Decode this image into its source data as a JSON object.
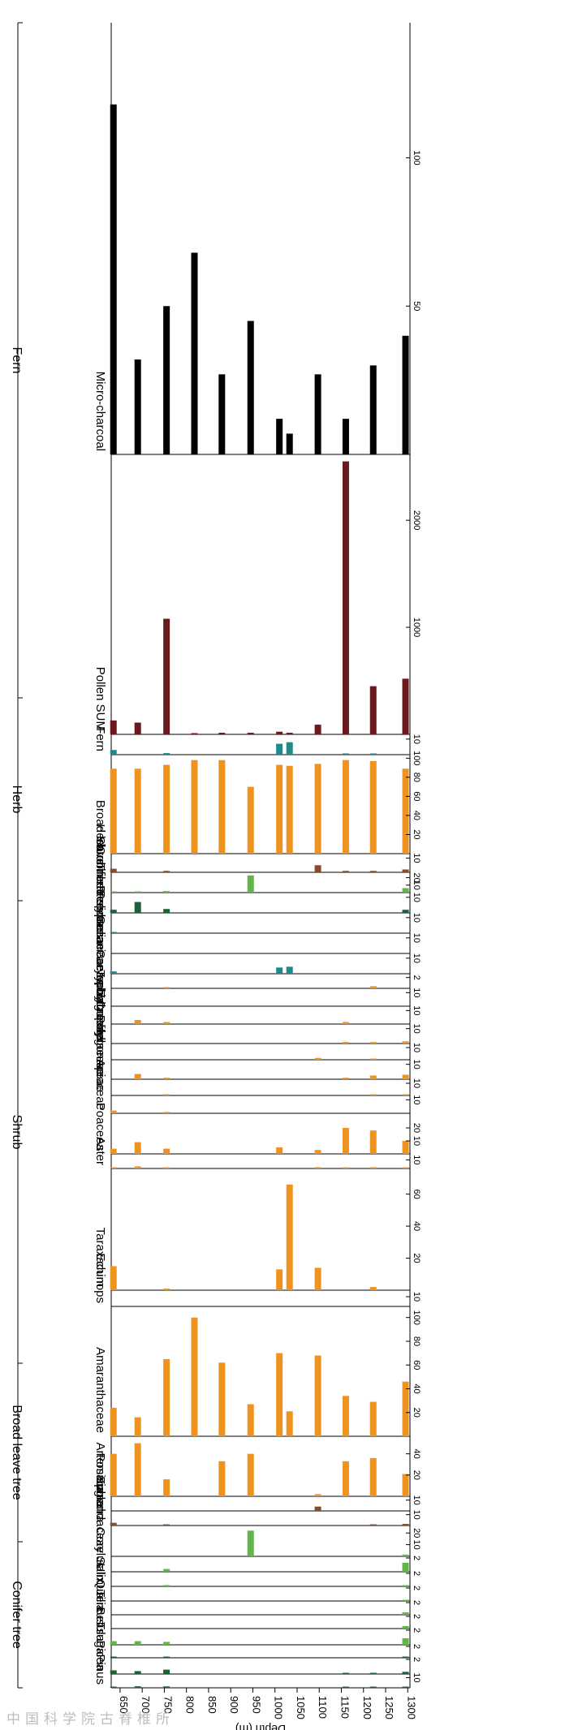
{
  "chart_data": {
    "type": "bar",
    "title": "",
    "x_axis": {
      "label": "Depth (m)",
      "range": [
        630,
        1305
      ],
      "ticks": [
        650,
        700,
        750,
        800,
        850,
        900,
        950,
        1000,
        1050,
        1100,
        1150,
        1200,
        1250,
        1300
      ]
    },
    "depths": [
      635,
      690,
      755,
      818,
      880,
      945,
      1010,
      1033,
      1097,
      1160,
      1222,
      1295
    ],
    "colors": {
      "conifer": "#1f5f3a",
      "broadleaf": "#62b44c",
      "shrub": "#8a4a2c",
      "herb": "#ef9320",
      "fern": "#1f8a8a",
      "pollen_sum": "#6a1a1e",
      "charcoal": "#000000"
    },
    "group_labels": [
      "Conifer tree",
      "Broad leave tree",
      "Shrub",
      "Herb",
      "Fern"
    ],
    "taxa": [
      {
        "name": "Pinus",
        "group": "conifer",
        "max": 12,
        "ticks": [
          10
        ],
        "values": [
          0.9,
          1.5,
          1.4,
          0,
          0,
          0,
          0,
          0,
          0,
          0.3,
          0.3,
          0.5
        ]
      },
      {
        "name": "Picea",
        "group": "conifer",
        "max": 2,
        "ticks": [
          2
        ],
        "values": [
          0.5,
          0.4,
          0.6,
          0,
          0,
          0,
          0,
          0,
          0,
          0.1,
          0.1,
          0.3
        ]
      },
      {
        "name": "Tsuga",
        "group": "conifer",
        "max": 2,
        "ticks": [
          2
        ],
        "values": [
          0.1,
          0,
          0.1,
          0,
          0,
          0,
          0,
          0,
          0,
          0,
          0,
          0.1
        ]
      },
      {
        "name": "Betula",
        "group": "broadleaf",
        "max": 2,
        "ticks": [
          2
        ],
        "values": [
          0.5,
          0.5,
          0.4,
          0,
          0,
          0,
          0,
          0,
          0,
          0,
          0,
          0.9
        ]
      },
      {
        "name": "Quercus",
        "group": "broadleaf",
        "max": 2,
        "ticks": [
          2
        ],
        "values": [
          0,
          0,
          0,
          0,
          0,
          0,
          0,
          0,
          0,
          0,
          0,
          0.4
        ]
      },
      {
        "name": "Tilia",
        "group": "broadleaf",
        "max": 2,
        "ticks": [
          2
        ],
        "values": [
          0,
          0,
          0,
          0,
          0,
          0,
          0,
          0,
          0,
          0,
          0,
          0.4
        ]
      },
      {
        "name": "Ulmus",
        "group": "broadleaf",
        "max": 2,
        "ticks": [
          2
        ],
        "values": [
          0,
          0,
          0,
          0,
          0,
          0,
          0,
          0,
          0,
          0,
          0,
          0.1
        ]
      },
      {
        "name": "Salix",
        "group": "broadleaf",
        "max": 2,
        "ticks": [
          2
        ],
        "values": [
          0,
          0,
          0.2,
          0,
          0,
          0,
          0,
          0,
          0,
          0,
          0,
          0.1
        ]
      },
      {
        "name": "Corylus",
        "group": "broadleaf",
        "max": 2,
        "ticks": [
          2
        ],
        "values": [
          0,
          0,
          0.4,
          0,
          0,
          0,
          0,
          0,
          0,
          0,
          0,
          1.3
        ]
      },
      {
        "name": "Juglandaceae",
        "group": "broadleaf",
        "max": 25,
        "ticks": [
          10,
          20
        ],
        "values": [
          0,
          0,
          0,
          0,
          0,
          22,
          0,
          0,
          0,
          0,
          0,
          1.5
        ]
      },
      {
        "name": "Ephedra",
        "group": "shrub",
        "max": 12,
        "ticks": [
          10
        ],
        "values": [
          2.5,
          0,
          1,
          0,
          0,
          0,
          0,
          0,
          0,
          0,
          1,
          1.5
        ]
      },
      {
        "name": "Rosaceae",
        "group": "shrub",
        "max": 12,
        "ticks": [
          10
        ],
        "values": [
          0,
          0,
          0,
          0,
          0,
          0,
          0,
          0,
          4,
          0,
          0,
          0
        ]
      },
      {
        "name": "Artemisia",
        "group": "herb",
        "max": 55,
        "ticks": [
          20,
          40
        ],
        "values": [
          40,
          50,
          16,
          0,
          33,
          40,
          0,
          0,
          2,
          33,
          36,
          21
        ]
      },
      {
        "name": "Amaranthaceae",
        "group": "herb",
        "max": 108,
        "ticks": [
          20,
          40,
          60,
          80,
          100
        ],
        "values": [
          24,
          16,
          65,
          100,
          62,
          27,
          70,
          21,
          68,
          34,
          29,
          46
        ]
      },
      {
        "name": "Echinops",
        "group": "herb",
        "max": 15,
        "ticks": [
          10
        ],
        "values": [
          0,
          0,
          0,
          0,
          0,
          0,
          0,
          0,
          0,
          0,
          0,
          0
        ]
      },
      {
        "name": "Taraxacum",
        "group": "herb",
        "max": 75,
        "ticks": [
          20,
          40,
          60
        ],
        "values": [
          15,
          0,
          1,
          0,
          0,
          0,
          13,
          66,
          14,
          0,
          2,
          0
        ]
      },
      {
        "name": "Aster",
        "group": "herb",
        "max": 15,
        "ticks": [
          10
        ],
        "values": [
          1,
          2.5,
          1,
          0,
          0,
          0,
          0,
          0,
          1.5,
          0.5,
          1.5,
          0.5
        ]
      },
      {
        "name": "Poaceea",
        "group": "herb",
        "max": 30,
        "ticks": [
          10,
          20
        ],
        "values": [
          4,
          9,
          4,
          0,
          0,
          0,
          5,
          0,
          3,
          20,
          18,
          10
        ]
      },
      {
        "name": "Apiaceae",
        "group": "herb",
        "max": 12,
        "ticks": [
          10
        ],
        "values": [
          2,
          0,
          1,
          0,
          0,
          0,
          0,
          0,
          0,
          0,
          0,
          0
        ]
      },
      {
        "name": "Polygonaceae",
        "group": "herb",
        "max": 12,
        "ticks": [
          10
        ],
        "values": [
          0,
          0,
          1,
          0,
          0,
          0,
          0,
          0,
          0,
          0,
          1,
          1
        ]
      },
      {
        "name": "Zygophyllaceae",
        "group": "herb",
        "max": 12,
        "ticks": [
          10
        ],
        "values": [
          0,
          3.5,
          1,
          0,
          0,
          0,
          0,
          0,
          0,
          1,
          2.5,
          3
        ]
      },
      {
        "name": "Cruciferae",
        "group": "herb",
        "max": 12,
        "ticks": [
          10
        ],
        "values": [
          0,
          0,
          0,
          0,
          0,
          0,
          0,
          0,
          1.5,
          0,
          1,
          0
        ]
      },
      {
        "name": "Caryophyllaceae",
        "group": "herb",
        "max": 12,
        "ticks": [
          10
        ],
        "values": [
          0,
          0,
          0,
          0,
          0,
          0,
          0,
          0,
          0,
          1,
          1,
          1.5
        ]
      },
      {
        "name": "Labiatae",
        "group": "herb",
        "max": 12,
        "ticks": [
          10
        ],
        "values": [
          0,
          3,
          1.5,
          0,
          0,
          0,
          0,
          0,
          0,
          1.5,
          0,
          0
        ]
      },
      {
        "name": "Typha",
        "group": "herb",
        "max": 12,
        "ticks": [
          10
        ],
        "values": [
          0,
          0,
          0,
          0,
          0,
          0,
          0,
          0,
          0,
          0,
          0,
          0
        ]
      },
      {
        "name": "Geraniaceae",
        "group": "herb",
        "max": 2.4,
        "ticks": [
          2
        ],
        "values": [
          0,
          0,
          0.2,
          0,
          0,
          0,
          0,
          0,
          0,
          0,
          0.4,
          0
        ]
      },
      {
        "name": "Polypodiaceae",
        "group": "fern",
        "max": 12,
        "ticks": [
          10
        ],
        "values": [
          1.5,
          0,
          0,
          0,
          0,
          0,
          4,
          4.5,
          0,
          0,
          0,
          0
        ]
      },
      {
        "name": "Pteridaceae",
        "group": "fern",
        "max": 12,
        "ticks": [
          10
        ],
        "values": [
          0,
          0,
          0,
          0,
          0,
          0,
          0,
          0,
          0,
          0,
          0,
          0
        ]
      },
      {
        "name": "Trilete spore",
        "group": "fern",
        "max": 12,
        "ticks": [
          10
        ],
        "values": [
          0.5,
          0,
          0,
          0,
          0,
          0,
          0,
          0,
          0,
          0,
          0,
          0
        ]
      },
      {
        "name": "Conifer tree",
        "group": "conifer",
        "max": 12,
        "ticks": [
          10
        ],
        "values": [
          2,
          7,
          2.5,
          0,
          0,
          0,
          0,
          0,
          0,
          0,
          0,
          2
        ]
      },
      {
        "name": "Broad leave tree",
        "group": "broadleaf",
        "max": 25,
        "ticks": [
          10,
          20
        ],
        "values": [
          1,
          1,
          2,
          0,
          0,
          23,
          0,
          0,
          0,
          0,
          0,
          6
        ]
      },
      {
        "name": "Shrub",
        "group": "shrub",
        "max": 12,
        "ticks": [
          10
        ],
        "values": [
          2.5,
          0,
          1,
          0,
          0,
          0,
          0,
          0,
          5,
          1,
          1,
          2
        ]
      },
      {
        "name": "Herb",
        "group": "herb",
        "max": 102,
        "ticks": [
          20,
          40,
          60,
          80,
          100
        ],
        "values": [
          89,
          89,
          93,
          98,
          98,
          70,
          93,
          92,
          94,
          98,
          97,
          89
        ]
      },
      {
        "name": "Fern",
        "group": "fern",
        "max": 12,
        "ticks": [
          10
        ],
        "values": [
          3,
          0,
          1,
          0,
          0,
          0,
          7,
          8,
          0,
          0.5,
          0.5,
          0
        ]
      },
      {
        "name": "Pollen SUM",
        "group": "pollen_sum",
        "max": 2600,
        "ticks": [
          1000,
          2000
        ],
        "values": [
          130,
          110,
          1080,
          5,
          15,
          15,
          25,
          15,
          90,
          2550,
          450,
          520
        ]
      },
      {
        "name": "Micro-charcoal",
        "group": "charcoal",
        "max": 145,
        "ticks": [
          50,
          100
        ],
        "values": [
          118,
          32,
          50,
          68,
          27,
          45,
          12,
          7,
          27,
          12,
          30,
          40
        ]
      }
    ]
  },
  "watermark": "中国科学院古脊椎所"
}
